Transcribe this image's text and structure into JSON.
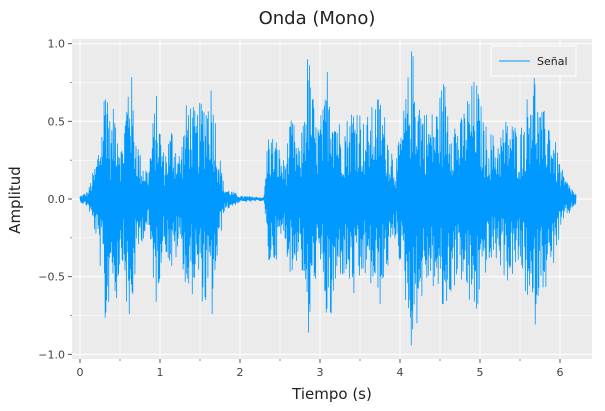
{
  "chart_data": {
    "type": "line",
    "title": "Onda (Mono)",
    "xlabel": "Tiempo (s)",
    "ylabel": "Amplitud",
    "xlim": [
      -0.1,
      6.4
    ],
    "ylim": [
      -1.03,
      1.03
    ],
    "xticks": [
      0,
      1,
      2,
      3,
      4,
      5,
      6
    ],
    "xtick_labels": [
      "0",
      "1",
      "2",
      "3",
      "4",
      "5",
      "6"
    ],
    "yticks": [
      -1.0,
      -0.5,
      0.0,
      0.5,
      1.0
    ],
    "ytick_labels": [
      "−1.0",
      "−0.5",
      "0.0",
      "0.5",
      "1.0"
    ],
    "grid": true,
    "legend_position": "top-right",
    "colors": {
      "background": "#ebebeb",
      "grid": "#ffffff",
      "series": "#0099ff"
    },
    "series": [
      {
        "name": "Señal",
        "duration": 6.2,
        "envelope": [
          [
            0.0,
            0.02
          ],
          [
            0.1,
            0.05
          ],
          [
            0.2,
            0.25
          ],
          [
            0.28,
            0.55
          ],
          [
            0.33,
            1.0
          ],
          [
            0.38,
            0.45
          ],
          [
            0.45,
            0.7
          ],
          [
            0.52,
            0.35
          ],
          [
            0.58,
            0.7
          ],
          [
            0.62,
            1.0
          ],
          [
            0.68,
            0.55
          ],
          [
            0.75,
            0.3
          ],
          [
            0.85,
            0.2
          ],
          [
            0.95,
            0.7
          ],
          [
            1.05,
            0.3
          ],
          [
            1.15,
            0.5
          ],
          [
            1.25,
            0.3
          ],
          [
            1.35,
            0.7
          ],
          [
            1.45,
            0.55
          ],
          [
            1.55,
            0.7
          ],
          [
            1.65,
            0.8
          ],
          [
            1.72,
            0.4
          ],
          [
            1.8,
            0.08
          ],
          [
            2.0,
            0.02
          ],
          [
            2.3,
            0.01
          ],
          [
            2.35,
            0.45
          ],
          [
            2.45,
            0.4
          ],
          [
            2.55,
            0.25
          ],
          [
            2.65,
            0.55
          ],
          [
            2.75,
            0.3
          ],
          [
            2.85,
            1.0
          ],
          [
            2.95,
            0.5
          ],
          [
            3.05,
            0.6
          ],
          [
            3.1,
            0.95
          ],
          [
            3.15,
            0.8
          ],
          [
            3.25,
            0.5
          ],
          [
            3.35,
            0.55
          ],
          [
            3.45,
            0.7
          ],
          [
            3.55,
            0.5
          ],
          [
            3.65,
            0.6
          ],
          [
            3.75,
            0.7
          ],
          [
            3.85,
            0.45
          ],
          [
            3.95,
            0.25
          ],
          [
            4.05,
            0.6
          ],
          [
            4.15,
            1.0
          ],
          [
            4.25,
            0.7
          ],
          [
            4.35,
            0.55
          ],
          [
            4.45,
            0.6
          ],
          [
            4.55,
            0.8
          ],
          [
            4.65,
            0.6
          ],
          [
            4.75,
            0.5
          ],
          [
            4.85,
            0.7
          ],
          [
            4.95,
            0.8
          ],
          [
            5.05,
            0.5
          ],
          [
            5.2,
            0.4
          ],
          [
            5.35,
            0.55
          ],
          [
            5.5,
            0.45
          ],
          [
            5.6,
            0.7
          ],
          [
            5.65,
            1.0
          ],
          [
            5.75,
            0.55
          ],
          [
            5.85,
            0.6
          ],
          [
            5.95,
            0.35
          ],
          [
            6.05,
            0.15
          ],
          [
            6.2,
            0.03
          ]
        ]
      }
    ]
  }
}
